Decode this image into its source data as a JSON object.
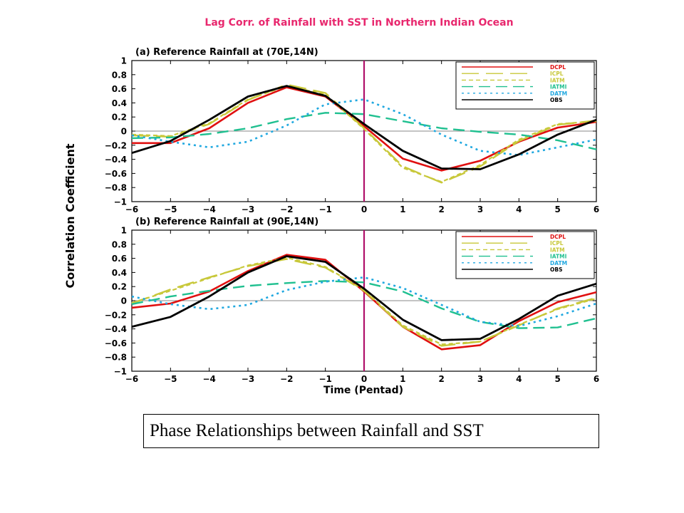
{
  "figure_title": "Lag Corr. of Rainfall with SST in Northern Indian Ocean",
  "ylabel": "Correlation Coefficient",
  "xlabel": "Time (Pentad)",
  "caption": "Phase Relationships between Rainfall and SST",
  "colors": {
    "title": "#e8286e",
    "zero_line_vertical": "#b0106a",
    "DCPL": "#e01010",
    "ICPL": "#c8c83a",
    "IATM": "#c8c83a",
    "IATMI": "#20c090",
    "DATM": "#20a8e0",
    "OBS": "#000000"
  },
  "legend": [
    {
      "name": "DCPL",
      "color": "#e01010",
      "style": "solid"
    },
    {
      "name": "ICPL",
      "color": "#c8c83a",
      "style": "long-dash"
    },
    {
      "name": "IATM",
      "color": "#c8c83a",
      "style": "short-dash"
    },
    {
      "name": "IATMI",
      "color": "#20c090",
      "style": "dash"
    },
    {
      "name": "DATM",
      "color": "#20a8e0",
      "style": "dotted"
    },
    {
      "name": "OBS",
      "color": "#000000",
      "style": "solid"
    }
  ],
  "chart_data": [
    {
      "type": "line",
      "title": "(a) Reference Rainfall at (70E,14N)",
      "x": [
        -6,
        -5,
        -4,
        -3,
        -2,
        -1,
        0,
        1,
        2,
        3,
        4,
        5,
        6
      ],
      "xticks": [
        "−6",
        "−5",
        "−4",
        "−3",
        "−2",
        "−1",
        "0",
        "1",
        "2",
        "3",
        "4",
        "5",
        "6"
      ],
      "ylim": [
        -1,
        1
      ],
      "yticks": [
        "−1",
        "−0.8",
        "−0.6",
        "−0.4",
        "−0.2",
        "0",
        "0.2",
        "0.4",
        "0.6",
        "0.8",
        "1"
      ],
      "series": [
        {
          "name": "DCPL",
          "values": [
            -0.17,
            -0.17,
            0.04,
            0.4,
            0.62,
            0.49,
            0.07,
            -0.39,
            -0.56,
            -0.42,
            -0.15,
            0.05,
            0.13
          ]
        },
        {
          "name": "ICPL",
          "values": [
            -0.06,
            -0.08,
            0.1,
            0.44,
            0.66,
            0.54,
            0.04,
            -0.5,
            -0.73,
            -0.5,
            -0.14,
            0.09,
            0.15
          ]
        },
        {
          "name": "IATM",
          "values": [
            -0.05,
            -0.07,
            0.11,
            0.45,
            0.64,
            0.52,
            0.03,
            -0.52,
            -0.72,
            -0.48,
            -0.12,
            0.1,
            0.14
          ]
        },
        {
          "name": "IATMI",
          "values": [
            -0.1,
            -0.09,
            -0.04,
            0.04,
            0.17,
            0.26,
            0.24,
            0.14,
            0.04,
            -0.01,
            -0.05,
            -0.13,
            -0.26
          ]
        },
        {
          "name": "DATM",
          "values": [
            -0.06,
            -0.15,
            -0.23,
            -0.15,
            0.08,
            0.38,
            0.45,
            0.24,
            -0.05,
            -0.28,
            -0.34,
            -0.23,
            -0.12
          ]
        },
        {
          "name": "OBS",
          "values": [
            -0.31,
            -0.14,
            0.16,
            0.49,
            0.64,
            0.5,
            0.1,
            -0.28,
            -0.53,
            -0.54,
            -0.33,
            -0.05,
            0.16
          ]
        }
      ]
    },
    {
      "type": "line",
      "title": "(b) Reference Rainfall at (90E,14N)",
      "x": [
        -6,
        -5,
        -4,
        -3,
        -2,
        -1,
        0,
        1,
        2,
        3,
        4,
        5,
        6
      ],
      "xticks": [
        "−6",
        "−5",
        "−4",
        "−3",
        "−2",
        "−1",
        "0",
        "1",
        "2",
        "3",
        "4",
        "5",
        "6"
      ],
      "ylim": [
        -1,
        1
      ],
      "yticks": [
        "−1",
        "−0.8",
        "−0.6",
        "−0.4",
        "−0.2",
        "0",
        "0.2",
        "0.4",
        "0.6",
        "0.8",
        "1"
      ],
      "series": [
        {
          "name": "DCPL",
          "values": [
            -0.1,
            -0.04,
            0.13,
            0.42,
            0.65,
            0.58,
            0.13,
            -0.37,
            -0.69,
            -0.63,
            -0.29,
            -0.02,
            0.12
          ]
        },
        {
          "name": "ICPL",
          "values": [
            -0.04,
            0.16,
            0.33,
            0.49,
            0.59,
            0.47,
            0.14,
            -0.37,
            -0.64,
            -0.58,
            -0.35,
            -0.11,
            0.04
          ]
        },
        {
          "name": "IATM",
          "values": [
            -0.03,
            0.14,
            0.32,
            0.5,
            0.61,
            0.48,
            0.15,
            -0.35,
            -0.62,
            -0.58,
            -0.34,
            -0.12,
            0.03
          ]
        },
        {
          "name": "IATMI",
          "values": [
            -0.05,
            0.06,
            0.14,
            0.21,
            0.25,
            0.28,
            0.26,
            0.13,
            -0.11,
            -0.3,
            -0.39,
            -0.38,
            -0.25
          ]
        },
        {
          "name": "DATM",
          "values": [
            0.06,
            -0.05,
            -0.12,
            -0.06,
            0.15,
            0.27,
            0.33,
            0.18,
            -0.06,
            -0.3,
            -0.36,
            -0.22,
            -0.04
          ]
        },
        {
          "name": "OBS",
          "values": [
            -0.37,
            -0.23,
            0.06,
            0.4,
            0.63,
            0.55,
            0.17,
            -0.27,
            -0.56,
            -0.54,
            -0.26,
            0.07,
            0.24
          ]
        }
      ]
    }
  ]
}
